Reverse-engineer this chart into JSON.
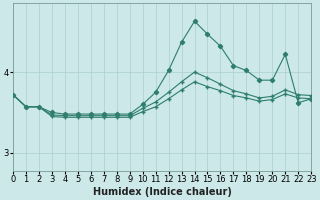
{
  "x": [
    0,
    1,
    2,
    3,
    4,
    5,
    6,
    7,
    8,
    9,
    10,
    11,
    12,
    13,
    14,
    15,
    16,
    17,
    18,
    19,
    20,
    21,
    22,
    23
  ],
  "line1": [
    3.72,
    3.57,
    3.57,
    3.5,
    3.48,
    3.48,
    3.48,
    3.48,
    3.48,
    3.48,
    3.6,
    3.75,
    4.02,
    4.37,
    4.63,
    4.47,
    4.32,
    4.08,
    4.02,
    3.9,
    3.9,
    4.22,
    3.62,
    3.67
  ],
  "line2": [
    3.72,
    3.57,
    3.57,
    3.47,
    3.46,
    3.46,
    3.46,
    3.46,
    3.46,
    3.46,
    3.55,
    3.63,
    3.75,
    3.88,
    4.0,
    3.93,
    3.85,
    3.77,
    3.73,
    3.68,
    3.7,
    3.78,
    3.72,
    3.71
  ],
  "line3": [
    3.72,
    3.57,
    3.57,
    3.45,
    3.44,
    3.44,
    3.44,
    3.44,
    3.44,
    3.44,
    3.51,
    3.57,
    3.67,
    3.78,
    3.88,
    3.82,
    3.77,
    3.71,
    3.68,
    3.64,
    3.66,
    3.73,
    3.68,
    3.67
  ],
  "line_color": "#2e7d6e",
  "bg_color": "#cce8e8",
  "grid_color": "#aacfcf",
  "ylabel_ticks": [
    3,
    4
  ],
  "ylim": [
    2.78,
    4.85
  ],
  "xlim": [
    0,
    23
  ],
  "xlabel": "Humidex (Indice chaleur)",
  "xlabel_fontsize": 7,
  "tick_fontsize": 6
}
